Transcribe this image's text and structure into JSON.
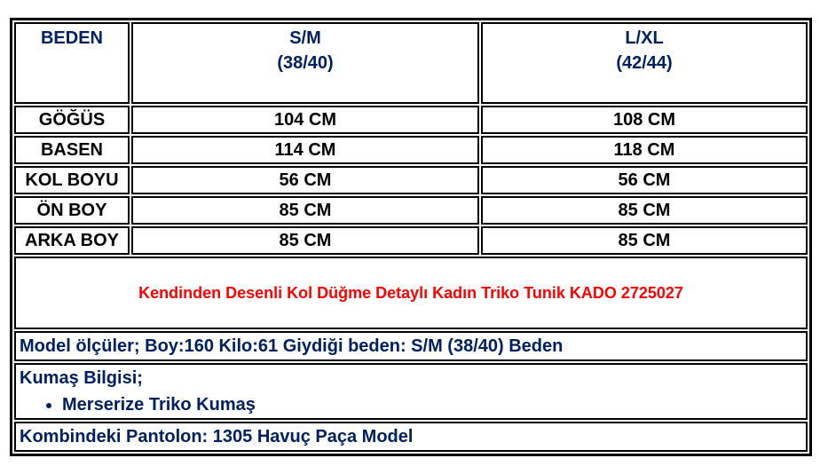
{
  "header": {
    "label": "BEDEN",
    "sizes": [
      {
        "name": "S/M",
        "detail": "(38/40)"
      },
      {
        "name": "L/XL",
        "detail": "(42/44)"
      }
    ]
  },
  "rows": [
    {
      "label": "GÖĞÜS",
      "values": [
        "104 CM",
        "108 CM"
      ]
    },
    {
      "label": "BASEN",
      "values": [
        "114 CM",
        "118 CM"
      ]
    },
    {
      "label": "KOL BOYU",
      "values": [
        "56 CM",
        "56 CM"
      ]
    },
    {
      "label": "ÖN BOY",
      "values": [
        "85 CM",
        "85 CM"
      ]
    },
    {
      "label": "ARKA BOY",
      "values": [
        "85 CM",
        "85 CM"
      ]
    }
  ],
  "product_title": "Kendinden Desenli Kol Düğme Detaylı Kadın Triko Tunik KADO 2725027",
  "model_info": "Model ölçüler; Boy:160 Kilo:61 Giydiği beden: S/M (38/40) Beden",
  "fabric": {
    "heading": "Kumaş Bilgisi;",
    "items": [
      "Merserize Triko Kumaş"
    ]
  },
  "combination": "Kombindeki Pantolon: 1305 Havuç Paça Model",
  "colors": {
    "header_text": "#002060",
    "title_text": "#ff0000",
    "body_text": "#000000"
  }
}
